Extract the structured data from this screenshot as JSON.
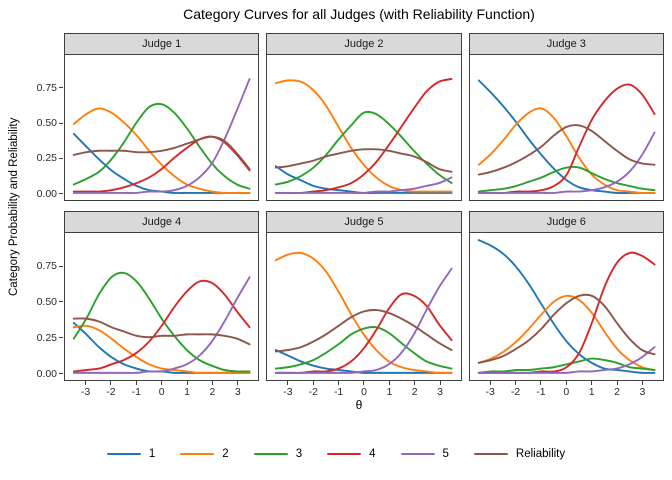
{
  "chart_data": {
    "type": "line",
    "title": "Category Curves for all Judges (with Reliability Function)",
    "xlabel": "θ",
    "ylabel": "Category Probability and Reliability",
    "grid": false,
    "legend_position": "bottom",
    "x": [
      -3.5,
      -3,
      -2.5,
      -2,
      -1.5,
      -1,
      -0.5,
      0,
      0.5,
      1,
      1.5,
      2,
      2.5,
      3,
      3.5
    ],
    "xlim": [
      -3.85,
      3.85
    ],
    "ylim": [
      -0.05,
      0.98
    ],
    "xticks": [
      -3,
      -2,
      -1,
      0,
      1,
      2,
      3
    ],
    "yticks": [
      "0.00",
      "0.25",
      "0.50",
      "0.75"
    ],
    "ytick_values": [
      0,
      0.25,
      0.5,
      0.75
    ],
    "legend": [
      {
        "label": "1",
        "color": "#1f77b4"
      },
      {
        "label": "2",
        "color": "#ff7f0e"
      },
      {
        "label": "3",
        "color": "#2ca02c"
      },
      {
        "label": "4",
        "color": "#d62728"
      },
      {
        "label": "5",
        "color": "#9467bd"
      },
      {
        "label": "Reliability",
        "color": "#8c564b"
      }
    ],
    "panels": [
      {
        "label": "Judge 1",
        "series": [
          {
            "name": "1",
            "values": [
              0.42,
              0.33,
              0.24,
              0.16,
              0.1,
              0.05,
              0.02,
              0.01,
              0.0,
              0.0,
              0.0,
              0.0,
              0.0,
              0.0,
              0.0
            ]
          },
          {
            "name": "2",
            "values": [
              0.49,
              0.56,
              0.6,
              0.57,
              0.5,
              0.41,
              0.3,
              0.2,
              0.12,
              0.06,
              0.03,
              0.01,
              0.0,
              0.0,
              0.0
            ]
          },
          {
            "name": "3",
            "values": [
              0.06,
              0.1,
              0.15,
              0.24,
              0.36,
              0.5,
              0.61,
              0.63,
              0.57,
              0.46,
              0.33,
              0.21,
              0.12,
              0.06,
              0.03
            ]
          },
          {
            "name": "4",
            "values": [
              0.01,
              0.01,
              0.01,
              0.02,
              0.04,
              0.07,
              0.11,
              0.17,
              0.25,
              0.32,
              0.38,
              0.4,
              0.36,
              0.27,
              0.16
            ]
          },
          {
            "name": "5",
            "values": [
              0.0,
              0.0,
              0.0,
              0.0,
              0.0,
              0.0,
              0.01,
              0.01,
              0.02,
              0.05,
              0.11,
              0.21,
              0.38,
              0.59,
              0.81
            ]
          },
          {
            "name": "Reliability",
            "values": [
              0.27,
              0.29,
              0.3,
              0.3,
              0.3,
              0.29,
              0.29,
              0.3,
              0.32,
              0.35,
              0.38,
              0.4,
              0.37,
              0.28,
              0.17
            ]
          }
        ]
      },
      {
        "label": "Judge 2",
        "series": [
          {
            "name": "1",
            "values": [
              0.19,
              0.13,
              0.09,
              0.05,
              0.03,
              0.02,
              0.01,
              0.0,
              0.0,
              0.0,
              0.0,
              0.0,
              0.0,
              0.0,
              0.0
            ]
          },
          {
            "name": "2",
            "values": [
              0.78,
              0.8,
              0.79,
              0.73,
              0.62,
              0.47,
              0.32,
              0.2,
              0.11,
              0.05,
              0.02,
              0.01,
              0.01,
              0.01,
              0.01
            ]
          },
          {
            "name": "3",
            "values": [
              0.06,
              0.08,
              0.12,
              0.18,
              0.27,
              0.38,
              0.48,
              0.57,
              0.56,
              0.49,
              0.4,
              0.3,
              0.21,
              0.13,
              0.07
            ]
          },
          {
            "name": "4",
            "values": [
              0.0,
              0.0,
              0.0,
              0.01,
              0.02,
              0.04,
              0.07,
              0.13,
              0.22,
              0.34,
              0.47,
              0.6,
              0.72,
              0.79,
              0.81
            ]
          },
          {
            "name": "5",
            "values": [
              0.0,
              0.0,
              0.0,
              0.0,
              0.0,
              0.0,
              0.0,
              0.0,
              0.01,
              0.01,
              0.02,
              0.03,
              0.05,
              0.07,
              0.11
            ]
          },
          {
            "name": "Reliability",
            "values": [
              0.18,
              0.19,
              0.21,
              0.23,
              0.26,
              0.28,
              0.3,
              0.31,
              0.31,
              0.3,
              0.28,
              0.26,
              0.22,
              0.17,
              0.15
            ]
          }
        ]
      },
      {
        "label": "Judge 3",
        "series": [
          {
            "name": "1",
            "values": [
              0.8,
              0.71,
              0.61,
              0.5,
              0.38,
              0.27,
              0.17,
              0.09,
              0.04,
              0.02,
              0.01,
              0.0,
              0.0,
              0.0,
              0.0
            ]
          },
          {
            "name": "2",
            "values": [
              0.2,
              0.28,
              0.38,
              0.49,
              0.57,
              0.6,
              0.53,
              0.4,
              0.25,
              0.13,
              0.06,
              0.02,
              0.01,
              0.0,
              0.0
            ]
          },
          {
            "name": "3",
            "values": [
              0.01,
              0.02,
              0.03,
              0.05,
              0.08,
              0.11,
              0.15,
              0.18,
              0.18,
              0.14,
              0.1,
              0.07,
              0.05,
              0.03,
              0.02
            ]
          },
          {
            "name": "4",
            "values": [
              0.0,
              0.0,
              0.0,
              0.01,
              0.01,
              0.02,
              0.05,
              0.13,
              0.33,
              0.52,
              0.65,
              0.74,
              0.77,
              0.7,
              0.56
            ]
          },
          {
            "name": "5",
            "values": [
              0.0,
              0.0,
              0.0,
              0.0,
              0.0,
              0.0,
              0.0,
              0.01,
              0.01,
              0.02,
              0.04,
              0.08,
              0.15,
              0.27,
              0.43
            ]
          },
          {
            "name": "Reliability",
            "values": [
              0.13,
              0.15,
              0.18,
              0.22,
              0.27,
              0.33,
              0.41,
              0.47,
              0.48,
              0.44,
              0.37,
              0.3,
              0.24,
              0.21,
              0.2
            ]
          }
        ]
      },
      {
        "label": "Judge 4",
        "series": [
          {
            "name": "1",
            "values": [
              0.35,
              0.27,
              0.18,
              0.11,
              0.06,
              0.03,
              0.01,
              0.01,
              0.0,
              0.0,
              0.0,
              0.0,
              0.0,
              0.0,
              0.0
            ]
          },
          {
            "name": "2",
            "values": [
              0.32,
              0.33,
              0.3,
              0.24,
              0.17,
              0.11,
              0.06,
              0.03,
              0.02,
              0.01,
              0.0,
              0.0,
              0.0,
              0.0,
              0.0
            ]
          },
          {
            "name": "3",
            "values": [
              0.24,
              0.38,
              0.55,
              0.67,
              0.7,
              0.64,
              0.52,
              0.38,
              0.26,
              0.16,
              0.09,
              0.05,
              0.02,
              0.01,
              0.01
            ]
          },
          {
            "name": "4",
            "values": [
              0.01,
              0.02,
              0.03,
              0.06,
              0.09,
              0.14,
              0.22,
              0.33,
              0.46,
              0.57,
              0.64,
              0.63,
              0.55,
              0.43,
              0.32
            ]
          },
          {
            "name": "5",
            "values": [
              0.0,
              0.0,
              0.0,
              0.0,
              0.0,
              0.0,
              0.01,
              0.01,
              0.03,
              0.06,
              0.12,
              0.22,
              0.36,
              0.52,
              0.67
            ]
          },
          {
            "name": "Reliability",
            "values": [
              0.38,
              0.38,
              0.36,
              0.32,
              0.29,
              0.26,
              0.25,
              0.26,
              0.26,
              0.27,
              0.27,
              0.27,
              0.26,
              0.24,
              0.2
            ]
          }
        ]
      },
      {
        "label": "Judge 5",
        "series": [
          {
            "name": "1",
            "values": [
              0.16,
              0.12,
              0.08,
              0.05,
              0.03,
              0.02,
              0.01,
              0.0,
              0.0,
              0.0,
              0.0,
              0.0,
              0.0,
              0.0,
              0.0
            ]
          },
          {
            "name": "2",
            "values": [
              0.79,
              0.83,
              0.84,
              0.8,
              0.71,
              0.57,
              0.41,
              0.27,
              0.16,
              0.08,
              0.04,
              0.02,
              0.01,
              0.0,
              0.0
            ]
          },
          {
            "name": "3",
            "values": [
              0.03,
              0.04,
              0.06,
              0.09,
              0.14,
              0.2,
              0.27,
              0.31,
              0.32,
              0.28,
              0.21,
              0.14,
              0.08,
              0.05,
              0.03
            ]
          },
          {
            "name": "4",
            "values": [
              0.0,
              0.0,
              0.0,
              0.01,
              0.01,
              0.03,
              0.08,
              0.17,
              0.3,
              0.45,
              0.55,
              0.54,
              0.47,
              0.34,
              0.23
            ]
          },
          {
            "name": "5",
            "values": [
              0.0,
              0.0,
              0.0,
              0.0,
              0.0,
              0.0,
              0.0,
              0.01,
              0.02,
              0.06,
              0.14,
              0.27,
              0.44,
              0.6,
              0.73
            ]
          },
          {
            "name": "Reliability",
            "values": [
              0.15,
              0.16,
              0.18,
              0.22,
              0.27,
              0.33,
              0.39,
              0.43,
              0.44,
              0.42,
              0.38,
              0.33,
              0.27,
              0.21,
              0.16
            ]
          }
        ]
      },
      {
        "label": "Judge 6",
        "series": [
          {
            "name": "1",
            "values": [
              0.93,
              0.89,
              0.83,
              0.74,
              0.62,
              0.48,
              0.34,
              0.22,
              0.13,
              0.07,
              0.03,
              0.02,
              0.01,
              0.0,
              0.0
            ]
          },
          {
            "name": "2",
            "values": [
              0.07,
              0.1,
              0.15,
              0.22,
              0.31,
              0.41,
              0.5,
              0.54,
              0.51,
              0.42,
              0.29,
              0.17,
              0.09,
              0.04,
              0.02
            ]
          },
          {
            "name": "3",
            "values": [
              0.0,
              0.01,
              0.01,
              0.02,
              0.02,
              0.03,
              0.04,
              0.06,
              0.08,
              0.1,
              0.09,
              0.07,
              0.04,
              0.03,
              0.02
            ]
          },
          {
            "name": "4",
            "values": [
              0.0,
              0.0,
              0.0,
              0.0,
              0.0,
              0.01,
              0.01,
              0.04,
              0.14,
              0.35,
              0.6,
              0.77,
              0.84,
              0.82,
              0.76
            ]
          },
          {
            "name": "5",
            "values": [
              0.0,
              0.0,
              0.0,
              0.0,
              0.0,
              0.0,
              0.0,
              0.0,
              0.01,
              0.01,
              0.02,
              0.03,
              0.06,
              0.11,
              0.18
            ]
          },
          {
            "name": "Reliability",
            "values": [
              0.07,
              0.09,
              0.12,
              0.17,
              0.23,
              0.31,
              0.41,
              0.49,
              0.54,
              0.54,
              0.47,
              0.35,
              0.24,
              0.16,
              0.13
            ]
          }
        ]
      }
    ]
  }
}
